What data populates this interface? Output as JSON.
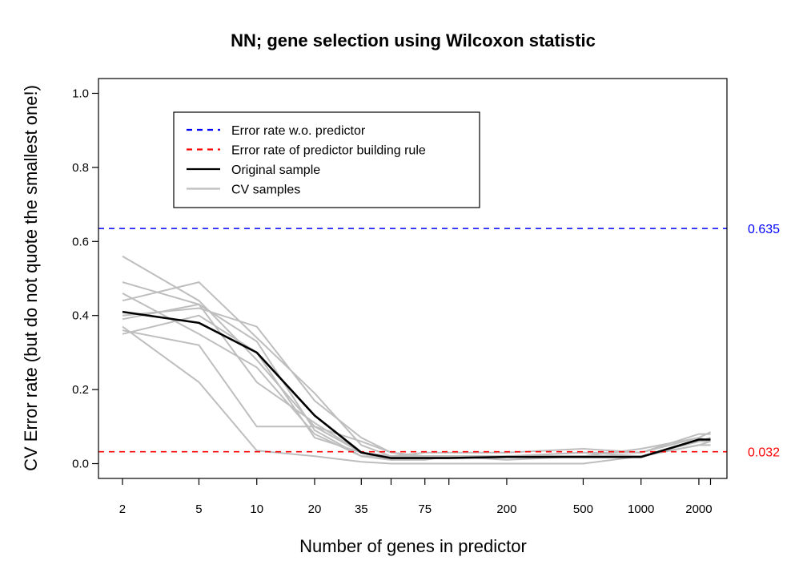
{
  "chart_data": {
    "type": "line",
    "title": "NN; gene selection using Wilcoxon statistic",
    "xlabel": "Number of genes in predictor",
    "ylabel": "CV Error rate (but do not quote the smallest one!)",
    "x_scale": "log",
    "xlim": [
      1.5,
      2800
    ],
    "ylim": [
      -0.04,
      1.04
    ],
    "x_ticks": [
      2,
      5,
      10,
      20,
      35,
      50,
      75,
      100,
      200,
      500,
      1000,
      2000,
      2300
    ],
    "x_tick_labels": [
      "2",
      "5",
      "10",
      "20",
      "35",
      "",
      "75",
      "",
      "200",
      "500",
      "1000",
      "2000",
      ""
    ],
    "y_ticks": [
      0.0,
      0.2,
      0.4,
      0.6,
      0.8,
      1.0
    ],
    "y_tick_labels": [
      "0.0",
      "0.2",
      "0.4",
      "0.6",
      "0.8",
      "1.0"
    ],
    "x": [
      2,
      5,
      10,
      20,
      35,
      50,
      75,
      100,
      200,
      500,
      1000,
      2000,
      2300
    ],
    "reference_lines": [
      {
        "name": "Error rate w.o. predictor",
        "value": 0.635,
        "label": "0.635",
        "color": "#0000ff"
      },
      {
        "name": "Error rate of predictor building rule",
        "value": 0.032,
        "label": "0.032",
        "color": "#ff0000"
      }
    ],
    "series": [
      {
        "name": "Original sample",
        "color": "#000000",
        "values": [
          0.41,
          0.38,
          0.3,
          0.13,
          0.03,
          0.015,
          0.015,
          0.015,
          0.018,
          0.018,
          0.018,
          0.065,
          0.065
        ]
      },
      {
        "name": "CV samples",
        "color": "#bebebe",
        "runs": [
          [
            0.56,
            0.44,
            0.28,
            0.1,
            0.03,
            0.01,
            0.02,
            0.02,
            0.02,
            0.03,
            0.03,
            0.07,
            0.085
          ],
          [
            0.49,
            0.43,
            0.33,
            0.09,
            0.02,
            0.02,
            0.02,
            0.02,
            0.02,
            0.03,
            0.02,
            0.06,
            0.07
          ],
          [
            0.46,
            0.35,
            0.26,
            0.08,
            0.02,
            0.01,
            0.01,
            0.02,
            0.02,
            0.02,
            0.02,
            0.06,
            0.07
          ],
          [
            0.44,
            0.49,
            0.34,
            0.19,
            0.05,
            0.02,
            0.03,
            0.03,
            0.03,
            0.04,
            0.03,
            0.08,
            0.08
          ],
          [
            0.4,
            0.42,
            0.37,
            0.17,
            0.07,
            0.03,
            0.02,
            0.02,
            0.02,
            0.02,
            0.04,
            0.07,
            0.06
          ],
          [
            0.39,
            0.43,
            0.22,
            0.11,
            0.03,
            0.01,
            0.02,
            0.02,
            0.02,
            0.02,
            0.02,
            0.05,
            0.05
          ],
          [
            0.37,
            0.22,
            0.035,
            0.02,
            0.005,
            0.0,
            0.0,
            0.0,
            0.0,
            0.0,
            0.02,
            0.05,
            0.05
          ],
          [
            0.36,
            0.32,
            0.1,
            0.1,
            0.06,
            0.03,
            0.02,
            0.02,
            0.01,
            0.02,
            0.02,
            0.05,
            0.06
          ],
          [
            0.35,
            0.4,
            0.3,
            0.07,
            0.03,
            0.02,
            0.02,
            0.02,
            0.02,
            0.02,
            0.02,
            0.06,
            0.06
          ]
        ]
      }
    ],
    "legend": {
      "position": "top-left",
      "entries": [
        {
          "label": "Error rate w.o. predictor",
          "color": "#0000ff",
          "style": "dashed"
        },
        {
          "label": "Error rate of predictor building rule",
          "color": "#ff0000",
          "style": "dashed"
        },
        {
          "label": "Original sample",
          "color": "#000000",
          "style": "solid"
        },
        {
          "label": "CV samples",
          "color": "#bebebe",
          "style": "solid"
        }
      ]
    }
  }
}
